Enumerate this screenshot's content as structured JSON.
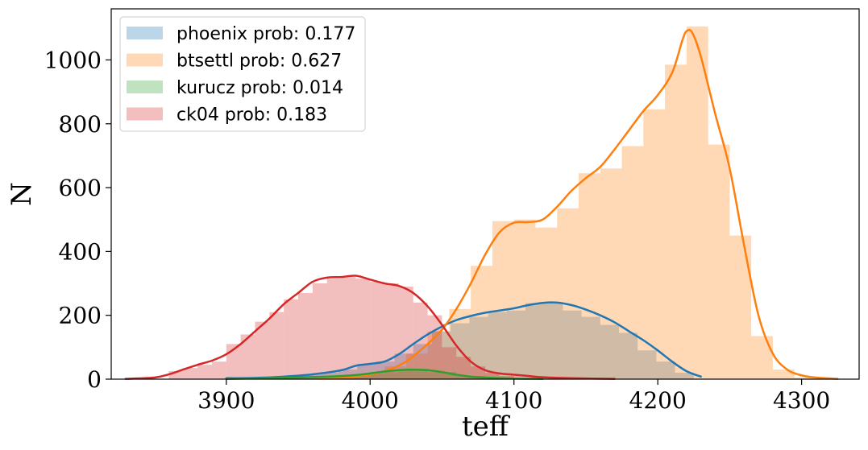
{
  "chart_data": {
    "type": "bar",
    "xlabel": "teff",
    "ylabel": "N",
    "xlim": [
      3820,
      4340
    ],
    "ylim": [
      0,
      1160
    ],
    "x_ticks": [
      3900,
      4000,
      4100,
      4200,
      4300
    ],
    "y_ticks": [
      0,
      200,
      400,
      600,
      800,
      1000
    ],
    "legend_position": "top-left",
    "grid": false,
    "series": [
      {
        "key": "phoenix",
        "name": "phoenix prob: 0.177",
        "color": "#1f77b4",
        "bins": [
          {
            "x0": 3900,
            "x1": 3913,
            "y": 3
          },
          {
            "x0": 3913,
            "x1": 3926,
            "y": 4
          },
          {
            "x0": 3926,
            "x1": 3939,
            "y": 6
          },
          {
            "x0": 3939,
            "x1": 3952,
            "y": 9
          },
          {
            "x0": 3952,
            "x1": 3965,
            "y": 13
          },
          {
            "x0": 3965,
            "x1": 3978,
            "y": 20
          },
          {
            "x0": 3978,
            "x1": 3991,
            "y": 30
          },
          {
            "x0": 3991,
            "x1": 4004,
            "y": 48
          },
          {
            "x0": 4004,
            "x1": 4017,
            "y": 55
          },
          {
            "x0": 4017,
            "x1": 4030,
            "y": 80
          },
          {
            "x0": 4030,
            "x1": 4043,
            "y": 110
          },
          {
            "x0": 4043,
            "x1": 4056,
            "y": 150
          },
          {
            "x0": 4056,
            "x1": 4069,
            "y": 175
          },
          {
            "x0": 4069,
            "x1": 4082,
            "y": 195
          },
          {
            "x0": 4082,
            "x1": 4095,
            "y": 210
          },
          {
            "x0": 4095,
            "x1": 4108,
            "y": 215
          },
          {
            "x0": 4108,
            "x1": 4121,
            "y": 238
          },
          {
            "x0": 4121,
            "x1": 4134,
            "y": 240
          },
          {
            "x0": 4134,
            "x1": 4147,
            "y": 215
          },
          {
            "x0": 4147,
            "x1": 4160,
            "y": 195
          },
          {
            "x0": 4160,
            "x1": 4173,
            "y": 170
          },
          {
            "x0": 4173,
            "x1": 4186,
            "y": 145
          },
          {
            "x0": 4186,
            "x1": 4199,
            "y": 90
          },
          {
            "x0": 4199,
            "x1": 4212,
            "y": 55
          },
          {
            "x0": 4212,
            "x1": 4225,
            "y": 20
          }
        ],
        "kde": [
          [
            3900,
            3
          ],
          [
            3920,
            4
          ],
          [
            3940,
            8
          ],
          [
            3960,
            15
          ],
          [
            3980,
            28
          ],
          [
            3990,
            42
          ],
          [
            4000,
            48
          ],
          [
            4010,
            55
          ],
          [
            4020,
            78
          ],
          [
            4030,
            110
          ],
          [
            4040,
            140
          ],
          [
            4050,
            165
          ],
          [
            4060,
            185
          ],
          [
            4070,
            198
          ],
          [
            4080,
            208
          ],
          [
            4090,
            215
          ],
          [
            4100,
            222
          ],
          [
            4110,
            232
          ],
          [
            4120,
            239
          ],
          [
            4130,
            240
          ],
          [
            4140,
            232
          ],
          [
            4150,
            218
          ],
          [
            4160,
            200
          ],
          [
            4170,
            178
          ],
          [
            4180,
            150
          ],
          [
            4190,
            122
          ],
          [
            4200,
            90
          ],
          [
            4210,
            55
          ],
          [
            4220,
            25
          ],
          [
            4230,
            8
          ]
        ]
      },
      {
        "key": "btsettl",
        "name": "btsettl prob: 0.627",
        "color": "#ff7f0e",
        "bins": [
          {
            "x0": 3965,
            "x1": 3980,
            "y": 5
          },
          {
            "x0": 3980,
            "x1": 3995,
            "y": 10
          },
          {
            "x0": 3995,
            "x1": 4010,
            "y": 18
          },
          {
            "x0": 4010,
            "x1": 4025,
            "y": 40
          },
          {
            "x0": 4025,
            "x1": 4040,
            "y": 80
          },
          {
            "x0": 4040,
            "x1": 4055,
            "y": 150
          },
          {
            "x0": 4055,
            "x1": 4070,
            "y": 220
          },
          {
            "x0": 4070,
            "x1": 4085,
            "y": 355
          },
          {
            "x0": 4085,
            "x1": 4100,
            "y": 495
          },
          {
            "x0": 4100,
            "x1": 4115,
            "y": 500
          },
          {
            "x0": 4115,
            "x1": 4130,
            "y": 475
          },
          {
            "x0": 4130,
            "x1": 4145,
            "y": 535
          },
          {
            "x0": 4145,
            "x1": 4160,
            "y": 645
          },
          {
            "x0": 4160,
            "x1": 4175,
            "y": 660
          },
          {
            "x0": 4175,
            "x1": 4190,
            "y": 730
          },
          {
            "x0": 4190,
            "x1": 4205,
            "y": 845
          },
          {
            "x0": 4205,
            "x1": 4220,
            "y": 985
          },
          {
            "x0": 4220,
            "x1": 4235,
            "y": 1105
          },
          {
            "x0": 4235,
            "x1": 4250,
            "y": 735
          },
          {
            "x0": 4250,
            "x1": 4265,
            "y": 450
          },
          {
            "x0": 4265,
            "x1": 4280,
            "y": 135
          },
          {
            "x0": 4280,
            "x1": 4295,
            "y": 30
          },
          {
            "x0": 4295,
            "x1": 4310,
            "y": 5
          }
        ],
        "kde": [
          [
            3965,
            3
          ],
          [
            3990,
            8
          ],
          [
            4010,
            25
          ],
          [
            4025,
            55
          ],
          [
            4040,
            110
          ],
          [
            4050,
            155
          ],
          [
            4060,
            220
          ],
          [
            4070,
            300
          ],
          [
            4080,
            390
          ],
          [
            4090,
            460
          ],
          [
            4100,
            490
          ],
          [
            4110,
            492
          ],
          [
            4120,
            500
          ],
          [
            4130,
            540
          ],
          [
            4140,
            590
          ],
          [
            4150,
            630
          ],
          [
            4160,
            665
          ],
          [
            4170,
            720
          ],
          [
            4180,
            780
          ],
          [
            4190,
            840
          ],
          [
            4200,
            890
          ],
          [
            4210,
            960
          ],
          [
            4217,
            1060
          ],
          [
            4220,
            1090
          ],
          [
            4224,
            1085
          ],
          [
            4230,
            1010
          ],
          [
            4240,
            830
          ],
          [
            4250,
            660
          ],
          [
            4260,
            420
          ],
          [
            4270,
            200
          ],
          [
            4280,
            80
          ],
          [
            4290,
            30
          ],
          [
            4300,
            12
          ],
          [
            4310,
            5
          ],
          [
            4325,
            1
          ]
        ]
      },
      {
        "key": "kurucz",
        "name": "kurucz prob: 0.014",
        "color": "#2ca02c",
        "bins": [
          {
            "x0": 3900,
            "x1": 3920,
            "y": 2
          },
          {
            "x0": 3920,
            "x1": 3940,
            "y": 3
          },
          {
            "x0": 3940,
            "x1": 3960,
            "y": 5
          },
          {
            "x0": 3960,
            "x1": 3980,
            "y": 7
          },
          {
            "x0": 3980,
            "x1": 4000,
            "y": 12
          },
          {
            "x0": 4000,
            "x1": 4020,
            "y": 22
          },
          {
            "x0": 4020,
            "x1": 4040,
            "y": 32
          },
          {
            "x0": 4040,
            "x1": 4060,
            "y": 22
          },
          {
            "x0": 4060,
            "x1": 4080,
            "y": 10
          },
          {
            "x0": 4080,
            "x1": 4100,
            "y": 5
          },
          {
            "x0": 4100,
            "x1": 4120,
            "y": 2
          }
        ],
        "kde": [
          [
            3900,
            1
          ],
          [
            3940,
            4
          ],
          [
            3970,
            8
          ],
          [
            3990,
            13
          ],
          [
            4000,
            18
          ],
          [
            4010,
            24
          ],
          [
            4020,
            28
          ],
          [
            4030,
            30
          ],
          [
            4040,
            28
          ],
          [
            4050,
            22
          ],
          [
            4060,
            14
          ],
          [
            4070,
            8
          ],
          [
            4080,
            5
          ],
          [
            4100,
            2
          ],
          [
            4120,
            1
          ]
        ]
      },
      {
        "key": "ck04",
        "name": "ck04 prob: 0.183",
        "color": "#d62728",
        "bins": [
          {
            "x0": 3860,
            "x1": 3870,
            "y": 25
          },
          {
            "x0": 3870,
            "x1": 3880,
            "y": 35
          },
          {
            "x0": 3880,
            "x1": 3890,
            "y": 45
          },
          {
            "x0": 3890,
            "x1": 3900,
            "y": 55
          },
          {
            "x0": 3900,
            "x1": 3910,
            "y": 110
          },
          {
            "x0": 3910,
            "x1": 3920,
            "y": 140
          },
          {
            "x0": 3920,
            "x1": 3930,
            "y": 180
          },
          {
            "x0": 3930,
            "x1": 3940,
            "y": 210
          },
          {
            "x0": 3940,
            "x1": 3950,
            "y": 250
          },
          {
            "x0": 3950,
            "x1": 3960,
            "y": 270
          },
          {
            "x0": 3960,
            "x1": 3970,
            "y": 300
          },
          {
            "x0": 3970,
            "x1": 3980,
            "y": 315
          },
          {
            "x0": 3980,
            "x1": 3990,
            "y": 320
          },
          {
            "x0": 3990,
            "x1": 4000,
            "y": 315
          },
          {
            "x0": 4000,
            "x1": 4010,
            "y": 305
          },
          {
            "x0": 4010,
            "x1": 4020,
            "y": 300
          },
          {
            "x0": 4020,
            "x1": 4030,
            "y": 290
          },
          {
            "x0": 4030,
            "x1": 4040,
            "y": 240
          },
          {
            "x0": 4040,
            "x1": 4050,
            "y": 200
          },
          {
            "x0": 4050,
            "x1": 4060,
            "y": 100
          },
          {
            "x0": 4060,
            "x1": 4070,
            "y": 70
          },
          {
            "x0": 4070,
            "x1": 4080,
            "y": 40
          },
          {
            "x0": 4080,
            "x1": 4090,
            "y": 20
          },
          {
            "x0": 4090,
            "x1": 4100,
            "y": 10
          }
        ],
        "kde": [
          [
            3830,
            1
          ],
          [
            3850,
            5
          ],
          [
            3860,
            15
          ],
          [
            3870,
            30
          ],
          [
            3880,
            45
          ],
          [
            3890,
            58
          ],
          [
            3900,
            78
          ],
          [
            3910,
            110
          ],
          [
            3920,
            150
          ],
          [
            3930,
            190
          ],
          [
            3940,
            235
          ],
          [
            3950,
            270
          ],
          [
            3960,
            305
          ],
          [
            3970,
            318
          ],
          [
            3980,
            320
          ],
          [
            3990,
            324
          ],
          [
            4000,
            312
          ],
          [
            4010,
            300
          ],
          [
            4020,
            292
          ],
          [
            4030,
            270
          ],
          [
            4040,
            228
          ],
          [
            4050,
            170
          ],
          [
            4060,
            105
          ],
          [
            4070,
            55
          ],
          [
            4080,
            28
          ],
          [
            4090,
            18
          ],
          [
            4100,
            14
          ],
          [
            4110,
            10
          ],
          [
            4120,
            6
          ],
          [
            4140,
            3
          ],
          [
            4170,
            1
          ]
        ]
      }
    ]
  }
}
